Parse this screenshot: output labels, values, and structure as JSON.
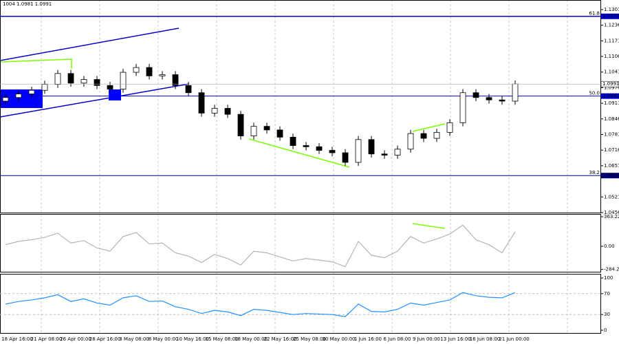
{
  "chart_data": {
    "type": "candlestick",
    "header": "1004 1.0981 1.0991",
    "open": [
      1.092,
      1.0935,
      1.095,
      1.0965,
      1.099,
      1.1035,
      1.0995,
      1.101,
      1.0985,
      1.097,
      1.104,
      1.106,
      1.1025,
      1.103,
      1.0985,
      1.0955,
      1.087,
      1.089,
      1.0865,
      1.0775,
      1.0815,
      1.08,
      1.077,
      1.0735,
      1.073,
      1.0715,
      1.0705,
      1.0665,
      1.076,
      1.07,
      1.0695,
      1.072,
      1.0785,
      1.0765,
      1.079,
      1.083,
      1.0955,
      1.0935,
      1.0925,
      1.092
    ],
    "high": [
      1.095,
      1.0965,
      1.098,
      1.1005,
      1.105,
      1.105,
      1.1025,
      1.1025,
      1.1,
      1.1055,
      1.1075,
      1.1075,
      1.1045,
      1.1045,
      1.1,
      1.097,
      1.0905,
      1.0905,
      1.088,
      1.083,
      1.083,
      1.0815,
      1.0785,
      1.075,
      1.0745,
      1.073,
      1.072,
      1.0775,
      1.0775,
      1.0715,
      1.0735,
      1.08,
      1.08,
      1.0805,
      1.0845,
      1.097,
      1.097,
      1.095,
      1.094,
      1.1006
    ],
    "low": [
      1.0905,
      1.092,
      1.0935,
      1.095,
      1.0975,
      1.098,
      1.098,
      1.097,
      1.0955,
      1.0955,
      1.1025,
      1.101,
      1.101,
      1.097,
      1.094,
      1.0855,
      1.0855,
      1.085,
      1.076,
      1.076,
      1.0785,
      1.0755,
      1.072,
      1.0715,
      1.07,
      1.069,
      1.065,
      1.065,
      1.0685,
      1.068,
      1.068,
      1.0705,
      1.075,
      1.075,
      1.0775,
      1.0815,
      1.092,
      1.091,
      1.0905,
      1.0905
    ],
    "close": [
      1.0935,
      1.095,
      1.0965,
      1.099,
      1.1035,
      1.0995,
      1.101,
      1.0985,
      1.097,
      1.104,
      1.106,
      1.1025,
      1.103,
      1.0985,
      1.0955,
      1.087,
      1.089,
      1.0865,
      1.0775,
      1.0815,
      1.08,
      1.077,
      1.0735,
      1.073,
      1.0715,
      1.0705,
      1.0665,
      1.076,
      1.07,
      1.0695,
      1.072,
      1.0785,
      1.0765,
      1.079,
      1.083,
      1.0955,
      1.0935,
      1.0925,
      1.092,
      1.0991
    ],
    "ylim": [
      1.0453,
      1.1341
    ],
    "yticks": [
      1.1301,
      1.1236,
      1.1171,
      1.1106,
      1.1041,
      1.0976,
      1.0911,
      1.0846,
      1.0781,
      1.0716,
      1.0651,
      1.0521,
      1.0456
    ],
    "levels": [
      {
        "value": 1.1273,
        "value_label": "1.1273",
        "label": "61.8"
      },
      {
        "value": 1.0941,
        "value_label": "1.0941",
        "label": "50.0"
      },
      {
        "value": 1.061,
        "value_label": "1.0610",
        "label": "38.2"
      }
    ],
    "cci": {
      "values": [
        20,
        60,
        80,
        110,
        160,
        40,
        70,
        -20,
        -60,
        120,
        170,
        30,
        40,
        -80,
        -120,
        -200,
        -100,
        -150,
        -230,
        -60,
        -80,
        -130,
        -180,
        -150,
        -170,
        -190,
        -250,
        60,
        -110,
        -140,
        -60,
        120,
        40,
        90,
        150,
        260,
        80,
        20,
        -80,
        180
      ],
      "color": "#b4b4b4",
      "ylim": [
        -321,
        397
      ],
      "yticks": [
        363.2235,
        {
          "value": 0,
          "label": "0.00"
        },
        -284.224
      ]
    },
    "rsi": {
      "values": [
        50,
        55,
        58,
        62,
        68,
        55,
        60,
        52,
        48,
        62,
        66,
        55,
        56,
        45,
        40,
        32,
        38,
        35,
        28,
        40,
        38,
        34,
        30,
        32,
        31,
        30,
        26,
        50,
        36,
        35,
        40,
        52,
        48,
        53,
        58,
        72,
        66,
        63,
        62,
        72
      ],
      "color": "#1e90ff",
      "ylim": [
        -6.6,
        107.9
      ],
      "yticks": [
        100,
        70,
        30,
        0
      ]
    },
    "time_labels": [
      "18 Apr 16:00",
      "21 Apr 08:00",
      "26 Apr 00:00",
      "28 Apr 16:00",
      "3 May 08:00",
      "8 May 00:00",
      "10 May 16:00",
      "15 May 08:00",
      "18 May 00:00",
      "22 May 16:00",
      "25 May 08:00",
      "30 May 00:00",
      "1 Jun 16:00",
      "6 Jun 08:00",
      "9 Jun 00:00",
      "13 Jun 16:00",
      "16 Jun 08:00",
      "21 Jun 00:00"
    ]
  }
}
